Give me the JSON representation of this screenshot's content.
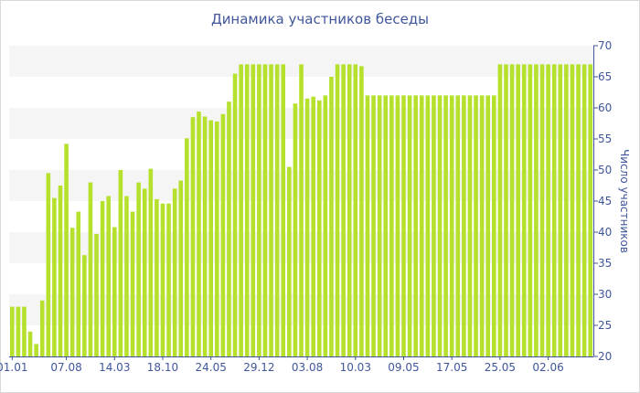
{
  "chart_data": {
    "type": "bar",
    "title": "Динамика участников беседы",
    "ylabel": "Число участников",
    "xlabel": "",
    "ylim": [
      20,
      70
    ],
    "yticks": [
      20,
      25,
      30,
      35,
      40,
      45,
      50,
      55,
      60,
      65,
      70
    ],
    "x_tick_labels": [
      {
        "index": 0,
        "label": "01.01"
      },
      {
        "index": 9,
        "label": "07.08"
      },
      {
        "index": 17,
        "label": "14.03"
      },
      {
        "index": 25,
        "label": "18.10"
      },
      {
        "index": 33,
        "label": "24.05"
      },
      {
        "index": 41,
        "label": "29.12"
      },
      {
        "index": 49,
        "label": "03.08"
      },
      {
        "index": 57,
        "label": "10.03"
      },
      {
        "index": 65,
        "label": "09.05"
      },
      {
        "index": 73,
        "label": "17.05"
      },
      {
        "index": 81,
        "label": "25.05"
      },
      {
        "index": 89,
        "label": "02.06"
      }
    ],
    "values": [
      28,
      28,
      28,
      24,
      22,
      29,
      49.5,
      45.5,
      47.5,
      54.2,
      40.7,
      43.3,
      36.3,
      48,
      39.7,
      45,
      45.8,
      40.8,
      50,
      45.8,
      43.3,
      48,
      47,
      50.2,
      45.3,
      44.6,
      44.6,
      47,
      48.3,
      55.1,
      58.5,
      59.4,
      58.6,
      58,
      57.8,
      59,
      61,
      65.5,
      67,
      67,
      67,
      67,
      67,
      67,
      67,
      67,
      50.5,
      60.7,
      67,
      61.5,
      61.8,
      61.2,
      62,
      65,
      67,
      67,
      67,
      67,
      66.7,
      62,
      62,
      62,
      62,
      62,
      62,
      62,
      62,
      62,
      62,
      62,
      62,
      62,
      62,
      62,
      62,
      62,
      62,
      62,
      62,
      62,
      62,
      67,
      67,
      67,
      67,
      67,
      67,
      67,
      67,
      67,
      67,
      67,
      67,
      67,
      67,
      67,
      67
    ],
    "bar_color": "#b5e02c",
    "band_color": "#f5f5f5",
    "axis_color": "#40569a",
    "y_axis_side": "right",
    "grid": "alternating horizontal bands"
  }
}
